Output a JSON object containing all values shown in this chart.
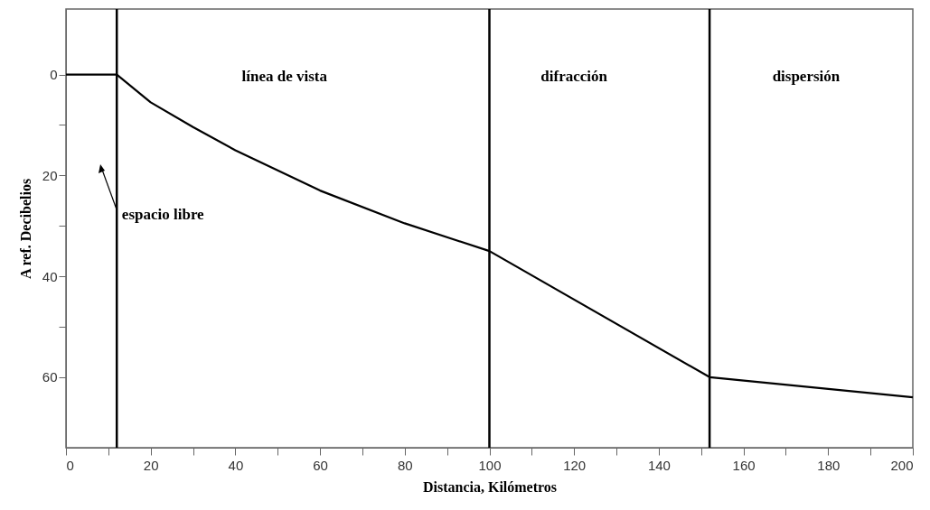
{
  "chart_data": {
    "type": "line",
    "xlabel": "Distancia, Kilómetros",
    "ylabel": "A ref. Decibelios",
    "x": [
      0,
      12,
      20,
      30,
      40,
      60,
      80,
      100,
      152,
      200
    ],
    "series": [
      {
        "color": "#000000",
        "values": [
          0,
          0,
          5.5,
          10.4,
          15,
          23,
          29.5,
          35,
          60,
          64
        ]
      }
    ],
    "xlim": [
      0,
      200
    ],
    "ylim": [
      74,
      -13
    ],
    "xticks": [
      0,
      {
        "value": 10,
        "label": null
      },
      20,
      {
        "value": 30,
        "label": null
      },
      40,
      {
        "value": 50,
        "label": null
      },
      60,
      {
        "value": 70,
        "label": null
      },
      80,
      {
        "value": 90,
        "label": null
      },
      100,
      {
        "value": 110,
        "label": null
      },
      120,
      {
        "value": 130,
        "label": null
      },
      140,
      {
        "value": 150,
        "label": null
      },
      160,
      {
        "value": 170,
        "label": null
      },
      180,
      {
        "value": 190,
        "label": null
      },
      200
    ],
    "yticks": [
      0,
      {
        "value": 10,
        "label": null
      },
      20,
      {
        "value": 30,
        "label": null
      },
      40,
      {
        "value": 50,
        "label": null
      },
      60
    ],
    "ref_lines": [
      {
        "axis": "x",
        "value": 12,
        "color": "#000000"
      },
      {
        "axis": "x",
        "value": 100,
        "color": "#000000"
      },
      {
        "axis": "x",
        "value": 152,
        "color": "#000000"
      }
    ],
    "annotations": [
      "línea de vista",
      "difracción",
      "dispersión",
      "espacio libre"
    ],
    "grid": false,
    "marker": "none",
    "line_style": "solid"
  }
}
